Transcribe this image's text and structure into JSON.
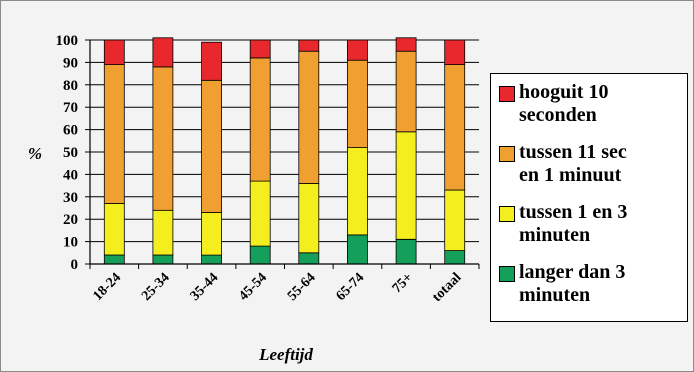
{
  "chart_data": {
    "type": "bar",
    "stacked": true,
    "categories": [
      "18-24",
      "25-34",
      "35-44",
      "45-54",
      "55-64",
      "65-74",
      "75+",
      "totaal"
    ],
    "series": [
      {
        "name": "langer dan 3 minuten",
        "color": "#14a05a",
        "values": [
          4,
          4,
          4,
          8,
          5,
          13,
          11,
          6
        ]
      },
      {
        "name": "tussen 1 en 3 minuten",
        "color": "#f5ee1e",
        "values": [
          23,
          20,
          19,
          29,
          31,
          39,
          48,
          27
        ]
      },
      {
        "name": "tussen 11 sec en 1 minuut",
        "color": "#f0a030",
        "values": [
          62,
          64,
          59,
          55,
          59,
          39,
          36,
          56
        ]
      },
      {
        "name": "hooguit 10 seconden",
        "color": "#e8282d",
        "values": [
          11,
          13,
          17,
          8,
          5,
          9,
          6,
          11
        ]
      }
    ],
    "xlabel": "Leeftijd",
    "ylabel": "%",
    "ylim": [
      0,
      100
    ],
    "yticks": [
      "0",
      "10",
      "20",
      "30",
      "40",
      "50",
      "60",
      "70",
      "80",
      "90",
      "100"
    ],
    "grid": true,
    "legend_position": "right"
  },
  "legend": [
    {
      "label_lines": [
        "hooguit 10",
        "seconden"
      ],
      "color": "#e8282d"
    },
    {
      "label_lines": [
        "tussen 11 sec",
        "en 1 minuut"
      ],
      "color": "#f0a030"
    },
    {
      "label_lines": [
        "tussen 1 en 3",
        "minuten"
      ],
      "color": "#f5ee1e"
    },
    {
      "label_lines": [
        "langer dan 3",
        "minuten"
      ],
      "color": "#14a05a"
    }
  ]
}
